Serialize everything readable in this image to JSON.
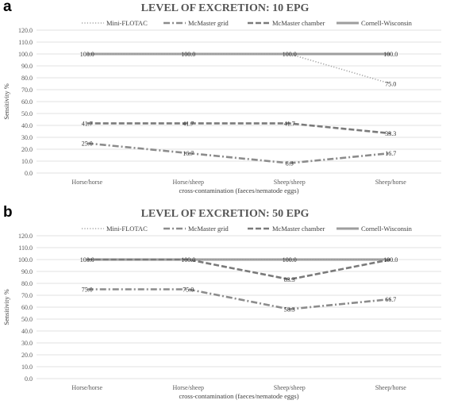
{
  "panels": [
    {
      "letter": "a",
      "chart_data": {
        "type": "line",
        "title": "LEVEL OF EXCRETION: 10 EPG",
        "xlabel": "cross-contamination (faeces/nematode eggs)",
        "ylabel": "Sensitivity %",
        "categories": [
          "Horse/horse",
          "Horse/sheep",
          "Sheep/sheep",
          "Sheep/horse"
        ],
        "ylim": [
          0,
          120
        ],
        "ytick_labels": [
          "0.0",
          "10.0",
          "20.0",
          "30.0",
          "40.0",
          "50.0",
          "60.0",
          "70.0",
          "80.0",
          "90.0",
          "100.0",
          "110.0",
          "120.0"
        ],
        "grid": true,
        "legend_position": "top",
        "series": [
          {
            "name": "Mini-FLOTAC",
            "values": [
              100,
              100,
              100,
              75
            ],
            "labels": [
              "",
              "",
              "",
              "75.0"
            ],
            "color": "#a6a6a6",
            "dash": "1.2,2.2",
            "width": 1.6
          },
          {
            "name": "McMaster  grid",
            "values": [
              25,
              16.7,
              8.3,
              16.7
            ],
            "labels": [
              "25.0",
              "16.7",
              "8.3",
              "16.7"
            ],
            "color": "#8c8c8c",
            "dash": "8,3,2,3",
            "width": 2.6
          },
          {
            "name": "McMaster  chamber",
            "values": [
              41.7,
              41.7,
              41.7,
              33.3
            ],
            "labels": [
              "41.7",
              "41.7",
              "41.7",
              "33.3"
            ],
            "color": "#7a7a7a",
            "dash": "7,3",
            "width": 2.6
          },
          {
            "name": "Cornell-Wisconsin",
            "values": [
              100,
              100,
              100,
              100
            ],
            "labels": [
              "100.0",
              "100.0",
              "100.0",
              "100.0"
            ],
            "color": "#9e9e9e",
            "dash": "",
            "width": 3
          }
        ]
      }
    },
    {
      "letter": "b",
      "chart_data": {
        "type": "line",
        "title": "LEVEL OF EXCRETION: 50 EPG",
        "xlabel": "cross-contamination (faeces/nematode eggs)",
        "ylabel": "Sensitivity %",
        "categories": [
          "Horse/horse",
          "Horse/sheep",
          "Sheep/sheep",
          "Sheep/horse"
        ],
        "ylim": [
          0,
          120
        ],
        "ytick_labels": [
          "0.0",
          "10.0",
          "20.0",
          "30.0",
          "40.0",
          "50.0",
          "60.0",
          "70.0",
          "80.0",
          "90.0",
          "100.0",
          "110.0",
          "120.0"
        ],
        "grid": true,
        "legend_position": "top",
        "series": [
          {
            "name": "Mini-FLOTAC",
            "values": [
              100,
              100,
              100,
              100
            ],
            "labels": [
              "",
              "",
              "",
              ""
            ],
            "color": "#a6a6a6",
            "dash": "1.2,2.2",
            "width": 1.6
          },
          {
            "name": "McMaster  grid",
            "values": [
              75,
              75,
              58.3,
              66.7
            ],
            "labels": [
              "75.0",
              "75.0",
              "58.3",
              "66.7"
            ],
            "color": "#8c8c8c",
            "dash": "8,3,2,3",
            "width": 2.6
          },
          {
            "name": "McMaster  chamber",
            "values": [
              100,
              100,
              83.3,
              100
            ],
            "labels": [
              "100.0",
              "100.0",
              "83.3",
              "100.0"
            ],
            "color": "#7a7a7a",
            "dash": "7,3",
            "width": 2.6
          },
          {
            "name": "Cornell-Wisconsin",
            "values": [
              100,
              100,
              100,
              100
            ],
            "labels": [
              "",
              "",
              "100.0",
              ""
            ],
            "color": "#9e9e9e",
            "dash": "",
            "width": 3
          }
        ]
      }
    }
  ]
}
